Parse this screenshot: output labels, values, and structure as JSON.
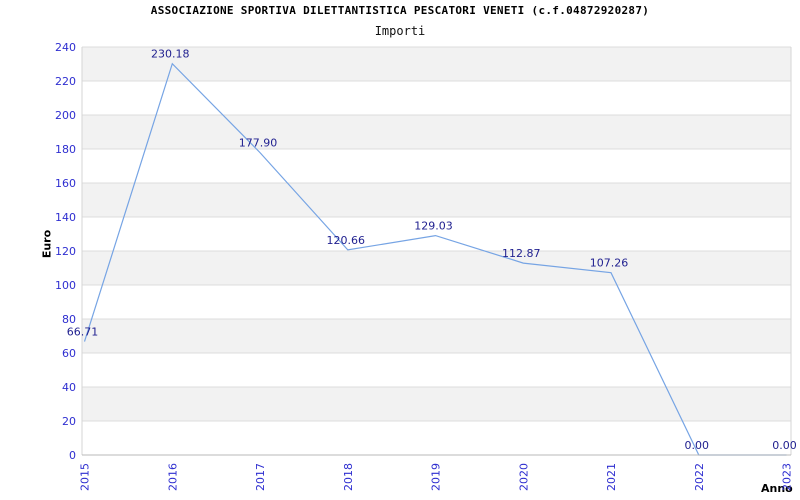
{
  "header": {
    "title": "ASSOCIAZIONE SPORTIVA DILETTANTISTICA PESCATORI VENETI (c.f.04872920287)",
    "subtitle": "Importi"
  },
  "chart_data": {
    "type": "line",
    "title": "ASSOCIAZIONE SPORTIVA DILETTANTISTICA PESCATORI VENETI (c.f.04872920287)",
    "subtitle": "Importi",
    "xlabel": "Anno",
    "ylabel": "Euro",
    "categories": [
      "2015",
      "2016",
      "2017",
      "2018",
      "2019",
      "2020",
      "2021",
      "2022",
      "2023"
    ],
    "values": [
      66.71,
      230.18,
      177.9,
      120.66,
      129.03,
      112.87,
      107.26,
      0.0,
      0.0
    ],
    "data_labels": [
      "66.71",
      "230.18",
      "177.90",
      "120.66",
      "129.03",
      "112.87",
      "107.26",
      "0.00",
      "0.00"
    ],
    "ylim": [
      0,
      240
    ],
    "ytick_step": 20,
    "ytick_labels": [
      "0",
      "20",
      "40",
      "60",
      "80",
      "100",
      "120",
      "140",
      "160",
      "180",
      "200",
      "220",
      "240"
    ],
    "grid": "horizontal",
    "alternating_bands": true,
    "legend_position": "none",
    "colors": {
      "line": "#76a4e4",
      "tick_label": "#2e2ed0",
      "data_label": "#1f1f8f",
      "band_fill": "#f2f2f2",
      "gridline": "#dcdcdc",
      "plot_border": "#d6d6d6",
      "axis_line": "#b8b8b8",
      "title_text": "#000000"
    }
  }
}
